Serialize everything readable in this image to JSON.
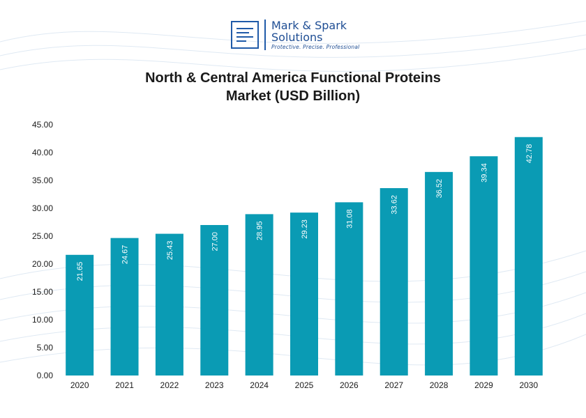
{
  "logo": {
    "brand": "Mark & Spark\nSolutions",
    "tagline": "Protective. Precise. Professional"
  },
  "colors": {
    "bar": "#0a9bb4",
    "text": "#1a1a1a",
    "brand": "#1f4e94"
  },
  "chart_data": {
    "type": "bar",
    "title": "North & Central America Functional Proteins\nMarket (USD Billion)",
    "categories": [
      "2020",
      "2021",
      "2022",
      "2023",
      "2024",
      "2025",
      "2026",
      "2027",
      "2028",
      "2029",
      "2030"
    ],
    "values": [
      21.65,
      24.67,
      25.43,
      27.0,
      28.95,
      29.23,
      31.08,
      33.62,
      36.52,
      39.34,
      42.78
    ],
    "data_labels": [
      "21.65",
      "24.67",
      "25.43",
      "27.00",
      "28.95",
      "29.23",
      "31.08",
      "33.62",
      "36.52",
      "39.34",
      "42.78"
    ],
    "yticks": [
      "0.00",
      "5.00",
      "10.00",
      "15.00",
      "20.00",
      "25.00",
      "30.00",
      "35.00",
      "40.00",
      "45.00"
    ],
    "ylim": [
      0,
      45
    ],
    "xlabel": "",
    "ylabel": "",
    "grid": false,
    "legend": "none"
  }
}
